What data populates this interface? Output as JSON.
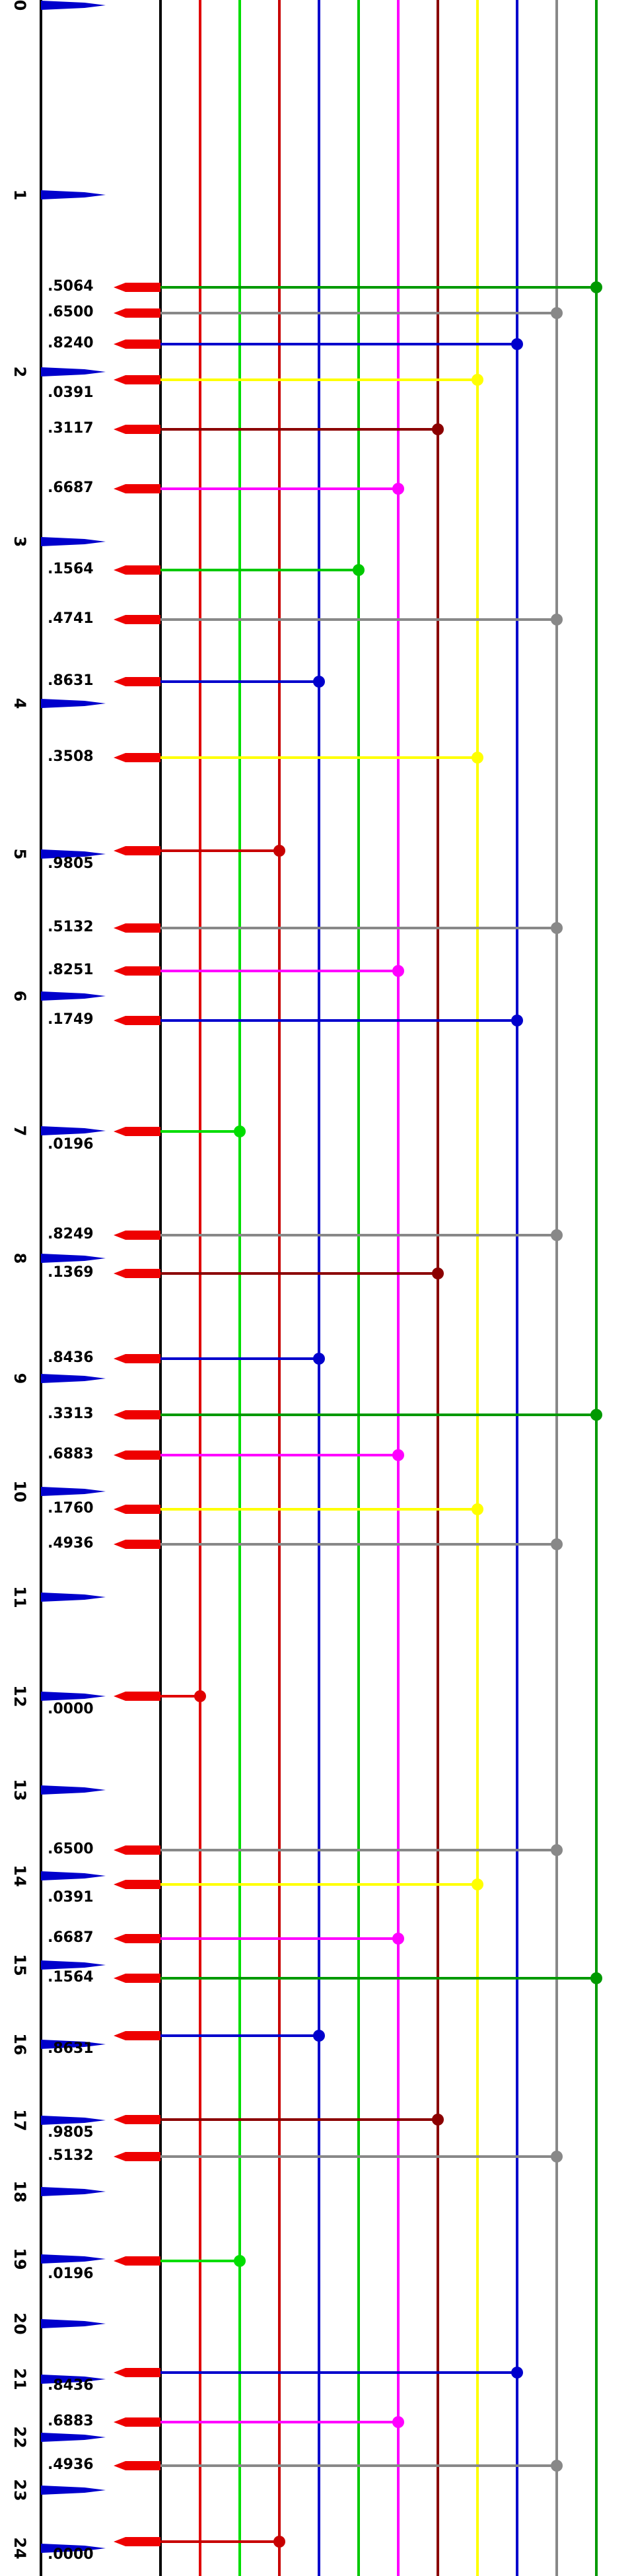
{
  "axis_labels": [
    "0",
    "1",
    "2",
    "3",
    "4",
    "5",
    "6",
    "7",
    "8",
    "9",
    "10",
    "11",
    "12",
    "13",
    "14",
    "15",
    "16",
    "17",
    "18",
    "19",
    "20",
    "21",
    "22",
    "23",
    "24"
  ],
  "track_colors": [
    "#e00000",
    "#00dd00",
    "#c80000",
    "#0000cc",
    "#00c800",
    "#ff00ff",
    "#8b0000",
    "#ffff00",
    "#0000cc",
    "#888888",
    "#009900"
  ],
  "connections": [
    {
      "value": ".5064",
      "track": 10,
      "color": "#009900"
    },
    {
      "value": ".6500",
      "track": 9,
      "color": "#888888"
    },
    {
      "value": ".8240",
      "track": 8,
      "color": "#0000cc"
    },
    {
      "value": ".0391",
      "track": 7,
      "color": "#ffff00"
    },
    {
      "value": ".3117",
      "track": 6,
      "color": "#8b0000"
    },
    {
      "value": ".6687",
      "track": 5,
      "color": "#ff00ff"
    },
    {
      "value": ".1564",
      "track": 4,
      "color": "#00c800"
    },
    {
      "value": ".4741",
      "track": 9,
      "color": "#888888"
    },
    {
      "value": ".8631",
      "track": 3,
      "color": "#0000cc"
    },
    {
      "value": ".3508",
      "track": 7,
      "color": "#ffff00"
    },
    {
      "value": ".9805",
      "track": 2,
      "color": "#c80000"
    },
    {
      "value": ".5132",
      "track": 9,
      "color": "#888888"
    },
    {
      "value": ".8251",
      "track": 5,
      "color": "#ff00ff"
    },
    {
      "value": ".1749",
      "track": 8,
      "color": "#0000cc"
    },
    {
      "value": ".0196",
      "track": 1,
      "color": "#00dd00"
    },
    {
      "value": ".8249",
      "track": 9,
      "color": "#888888"
    },
    {
      "value": ".1369",
      "track": 6,
      "color": "#8b0000"
    },
    {
      "value": ".8436",
      "track": 3,
      "color": "#0000cc"
    },
    {
      "value": ".3313",
      "track": 10,
      "color": "#009900"
    },
    {
      "value": ".6883",
      "track": 5,
      "color": "#ff00ff"
    },
    {
      "value": ".1760",
      "track": 7,
      "color": "#ffff00"
    },
    {
      "value": ".4936",
      "track": 9,
      "color": "#888888"
    },
    {
      "value": ".0000",
      "track": 0,
      "color": "#e00000"
    },
    {
      "value": ".6500",
      "track": 9,
      "color": "#888888"
    },
    {
      "value": ".0391",
      "track": 7,
      "color": "#ffff00"
    },
    {
      "value": ".6687",
      "track": 5,
      "color": "#ff00ff"
    },
    {
      "value": ".1564",
      "track": 10,
      "color": "#009900"
    },
    {
      "value": ".8631",
      "track": 3,
      "color": "#0000cc"
    },
    {
      "value": ".9805",
      "track": 6,
      "color": "#8b0000"
    },
    {
      "value": ".5132",
      "track": 9,
      "color": "#888888"
    },
    {
      "value": ".0196",
      "track": 1,
      "color": "#00dd00"
    },
    {
      "value": ".8436",
      "track": 8,
      "color": "#0000cc"
    },
    {
      "value": ".6883",
      "track": 5,
      "color": "#ff00ff"
    },
    {
      "value": ".4936",
      "track": 9,
      "color": "#888888"
    },
    {
      "value": ".0000",
      "track": 2,
      "color": "#c80000"
    }
  ]
}
